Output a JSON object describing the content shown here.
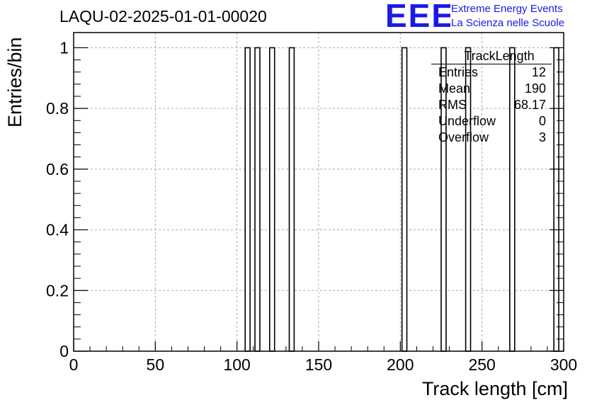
{
  "title": "LAQU-02-2025-01-01-00020",
  "logo": {
    "mark": "EEE",
    "line1": "Extreme Energy Events",
    "line2": "La Scienza nelle Scuole",
    "color": "#1a1ae6"
  },
  "stats": {
    "name": "TrackLength",
    "rows": [
      {
        "label": "Entries",
        "value": "12"
      },
      {
        "label": "Mean",
        "value": "190"
      },
      {
        "label": "RMS",
        "value": "68.17"
      },
      {
        "label": "Underflow",
        "value": "0"
      },
      {
        "label": "Overflow",
        "value": "3"
      }
    ]
  },
  "chart_data": {
    "type": "bar",
    "title": "LAQU-02-2025-01-01-00020",
    "xlabel": "Track length [cm]",
    "ylabel": "Entries/bin",
    "xlim": [
      0,
      300
    ],
    "ylim": [
      0,
      1
    ],
    "bin_width": 3,
    "xticks": [
      "0",
      "50",
      "100",
      "150",
      "200",
      "250",
      "300"
    ],
    "yticks": [
      "0",
      "0.2",
      "0.4",
      "0.6",
      "0.8",
      "1"
    ],
    "grid": true,
    "bins": [
      {
        "x0": 105,
        "x1": 108,
        "value": 1
      },
      {
        "x0": 111,
        "x1": 114,
        "value": 1
      },
      {
        "x0": 120,
        "x1": 123,
        "value": 1
      },
      {
        "x0": 132,
        "x1": 135,
        "value": 1
      },
      {
        "x0": 201,
        "x1": 204,
        "value": 1
      },
      {
        "x0": 225,
        "x1": 228,
        "value": 1
      },
      {
        "x0": 240,
        "x1": 243,
        "value": 1
      },
      {
        "x0": 267,
        "x1": 270,
        "value": 1
      },
      {
        "x0": 294,
        "x1": 297,
        "value": 1
      }
    ]
  }
}
